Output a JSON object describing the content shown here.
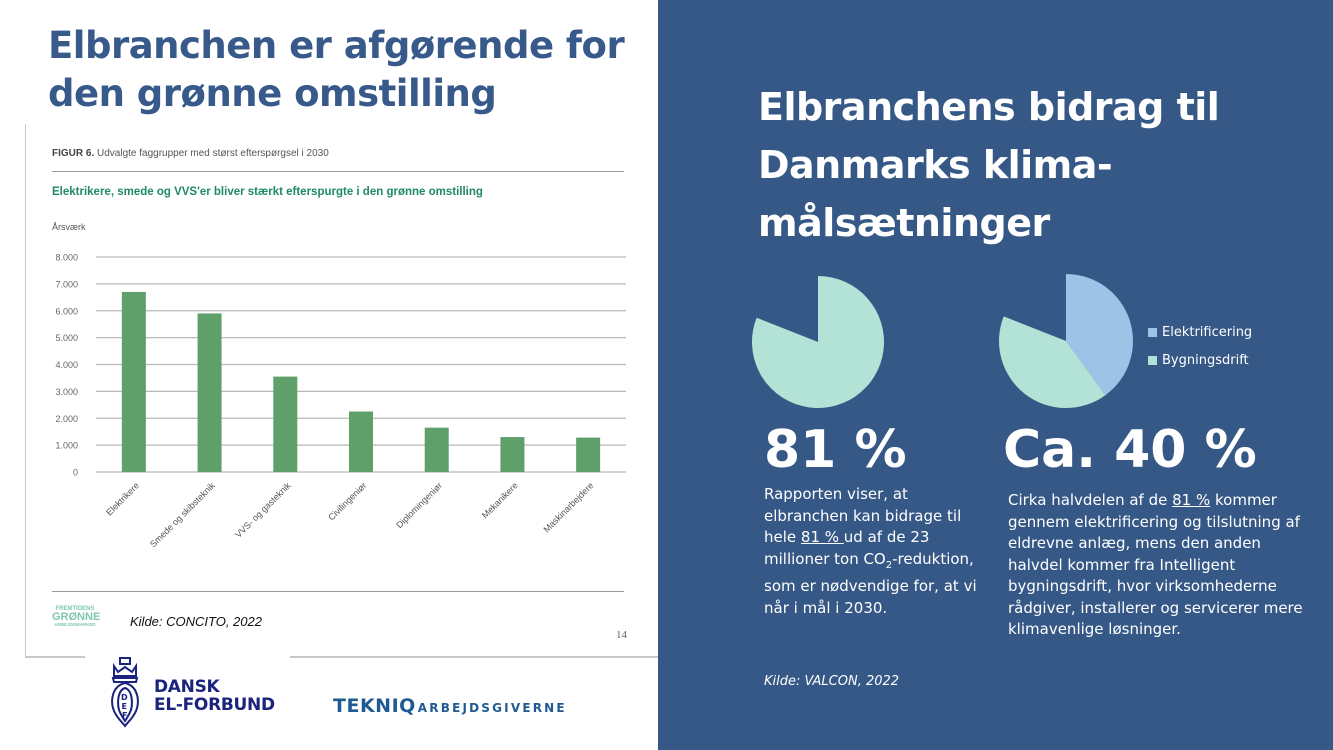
{
  "left": {
    "title_line1": "Elbranchen er afgørende for",
    "title_line2": "den grønne omstilling",
    "figure": {
      "caption_bold": "FIGUR 6.",
      "caption_text": " Udvalgte faggrupper med størst efterspørgsel i 2030",
      "subtitle": "Elektrikere, smede og VVS'er bliver stærkt efterspurgte i den grønne omstilling",
      "footer_logo": {
        "line1": "FREMTIDENS",
        "line2": "GRØNNE",
        "line3": "ARBEJDSMARKED"
      },
      "page_number": "14"
    },
    "source": "Kilde: CONCITO, 2022",
    "logos": {
      "def_line1": "DANSK",
      "def_line2": "EL-FORBUND",
      "def_badge_letters": [
        "D",
        "E",
        "F"
      ],
      "tekniq_bold": "TEKNIQ",
      "tekniq_rest": "ARBEJDSGIVERNE"
    }
  },
  "right": {
    "title_line1": "Elbranchens bidrag til",
    "title_line2": "Danmarks klima-",
    "title_line3": "målsætninger",
    "stat1": {
      "value": "81 %",
      "text_a": "Rapporten viser, at elbranchen kan bidrage til hele ",
      "text_u": "81 % ",
      "text_b": "ud af de 23 millioner ton CO",
      "text_sub": "2",
      "text_c": "-reduktion, som er nødvendige for, at vi når i mål i 2030.",
      "source": "Kilde: VALCON, 2022"
    },
    "stat2": {
      "value": "Ca. 40 %",
      "text_a": "Cirka halvdelen af de ",
      "text_u": "81 %",
      "text_b": " kommer gennem elektrificering og tilslutning af eldrevne anlæg, mens den anden halvdel kommer fra Intelligent bygningsdrift, hvor virksomhederne rådgiver, installerer og servicerer mere klimavenlige løsninger."
    }
  },
  "colors": {
    "title_blue": "#375a8a",
    "panel_blue": "#365886",
    "bar_green": "#5f9f6a",
    "subtitle_green": "#1f8a63",
    "mint": "#b3e3d6",
    "light_blue": "#9dc3e6"
  },
  "chart_data": [
    {
      "type": "bar",
      "title": "Elektrikere, smede og VVS'er bliver stærkt efterspurgte i den grønne omstilling",
      "ylabel": "Årsværk",
      "xlabel": "",
      "categories": [
        "Elektrikere",
        "Smede og skibsteknik",
        "VVS- og gasteknik",
        "Civilingeniør",
        "Diplomingeniør",
        "Mekanikere",
        "Maskinarbejdere"
      ],
      "values": [
        6700,
        5900,
        3550,
        2250,
        1650,
        1300,
        1280
      ],
      "ylim": [
        0,
        8000
      ],
      "yticks": [
        0,
        1000,
        2000,
        3000,
        4000,
        5000,
        6000,
        7000,
        8000
      ],
      "ytick_labels": [
        "0",
        "1.000",
        "2.000",
        "3.000",
        "4.000",
        "5.000",
        "6.000",
        "7.000",
        "8.000"
      ],
      "grid": true,
      "legend": "none"
    },
    {
      "type": "pie",
      "title": "",
      "slices": [
        {
          "name": "Elbranchens bidrag",
          "value": 81,
          "color": "#b3e3d6"
        },
        {
          "name": "",
          "value": 19,
          "color": "none"
        }
      ],
      "start": "top-clockwise",
      "legend": "none"
    },
    {
      "type": "pie",
      "title": "",
      "slices": [
        {
          "name": "Elektrificering",
          "value": 40,
          "color": "#9dc3e6"
        },
        {
          "name": "Bygningsdrift",
          "value": 41,
          "color": "#b3e3d6"
        },
        {
          "name": "",
          "value": 19,
          "color": "none"
        }
      ],
      "start": "top-clockwise",
      "legend": "right",
      "legend_entries": [
        "Elektrificering",
        "Bygningsdrift"
      ]
    }
  ]
}
